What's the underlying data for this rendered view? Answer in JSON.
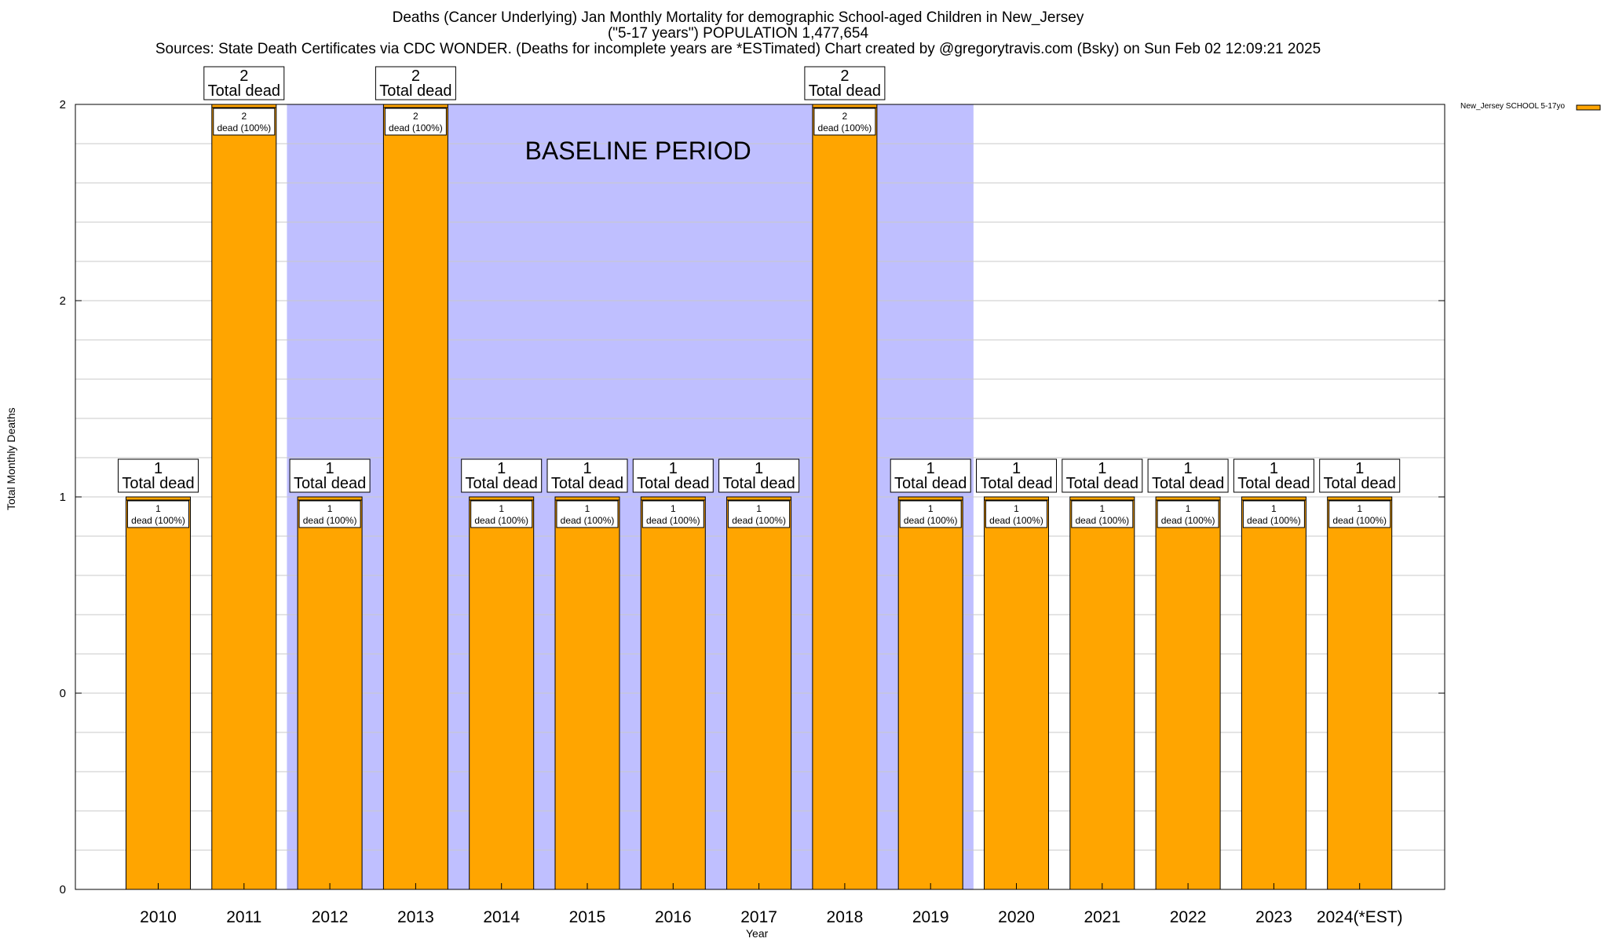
{
  "title": {
    "line1": "Deaths (Cancer Underlying) Jan Monthly Mortality for demographic School-aged Children in New_Jersey",
    "line2": "(\"5-17 years\") POPULATION 1,477,654",
    "line3": "Sources: State Death Certificates via CDC WONDER. (Deaths for incomplete years are *ESTimated)                Chart created by @gregorytravis.com (Bsky) on Sun Feb 02 12:09:21 2025"
  },
  "colors": {
    "bar": "#FFA500",
    "baseline_band": "#BFBFFF",
    "grid": "#c8c8c8"
  },
  "chart_data": {
    "type": "bar",
    "xlabel": "Year",
    "ylabel": "Total Monthly Deaths",
    "ylim": [
      0,
      2
    ],
    "y_tick_labels": [
      "0",
      "0",
      "1",
      "2",
      "2"
    ],
    "grid": true,
    "legend_position": "top-right",
    "baseline_label": "BASELINE PERIOD",
    "baseline_range": [
      "2012",
      "2019"
    ],
    "categories": [
      "2010",
      "2011",
      "2012",
      "2013",
      "2014",
      "2015",
      "2016",
      "2017",
      "2018",
      "2019",
      "2020",
      "2021",
      "2022",
      "2023",
      "2024(*EST)"
    ],
    "series": [
      {
        "name": "New_Jersey SCHOOL 5-17yo",
        "values": [
          1,
          2,
          1,
          2,
          1,
          1,
          1,
          1,
          2,
          1,
          1,
          1,
          1,
          1,
          1
        ]
      }
    ],
    "total_labels": [
      "1",
      "2",
      "1",
      "2",
      "1",
      "1",
      "1",
      "1",
      "2",
      "1",
      "1",
      "1",
      "1",
      "1",
      "1"
    ],
    "total_suffix": "Total dead",
    "inner_labels": [
      "1",
      "2",
      "1",
      "2",
      "1",
      "1",
      "1",
      "1",
      "2",
      "1",
      "1",
      "1",
      "1",
      "1",
      "1"
    ],
    "inner_suffix": "dead (100%)"
  }
}
